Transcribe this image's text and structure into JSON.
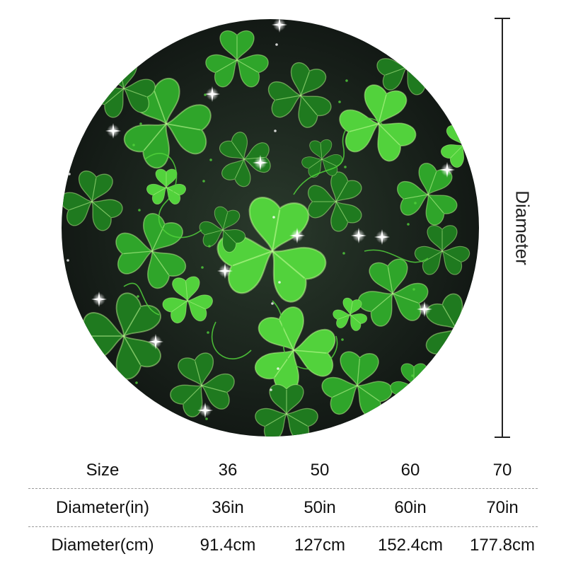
{
  "dimension_label": "Diameter",
  "product": {
    "description_icon": "shamrock-round-tablecloth",
    "colors": {
      "background": "#17201a",
      "leaf_dark": "#1f7a1f",
      "leaf_mid": "#2fa52a",
      "leaf_light": "#52d23c",
      "vein": "#c9ff9a",
      "sparkle": "#ffffff"
    }
  },
  "size_table": {
    "rows": [
      {
        "label": "Size",
        "values": [
          "36",
          "50",
          "60",
          "70"
        ]
      },
      {
        "label": "Diameter(in)",
        "values": [
          "36in",
          "50in",
          "60in",
          "70in"
        ]
      },
      {
        "label": "Diameter(cm)",
        "values": [
          "91.4cm",
          "127cm",
          "152.4cm",
          "177.8cm"
        ]
      }
    ]
  }
}
